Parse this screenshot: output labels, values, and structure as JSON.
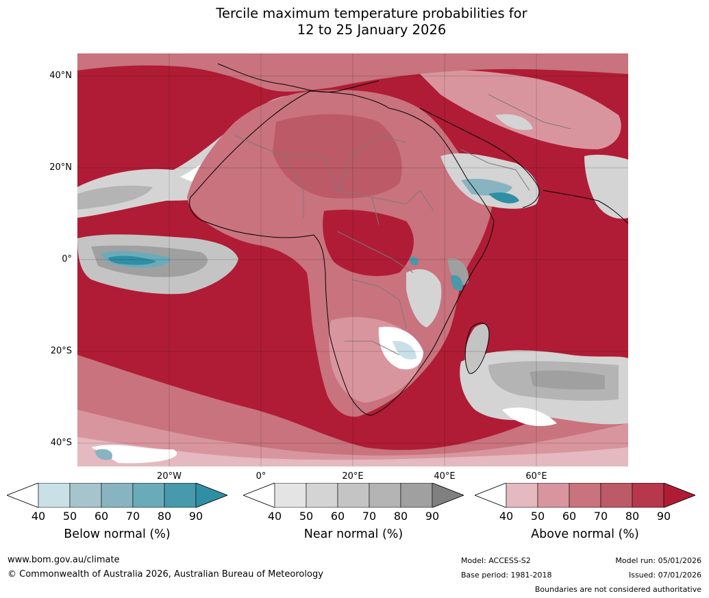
{
  "title": {
    "line1": "Tercile maximum temperature probabilities for",
    "line2": "12 to 25 January 2026"
  },
  "axes": {
    "latitude_labels": [
      "40°N",
      "20°N",
      "0°",
      "20°S",
      "40°S"
    ],
    "longitude_labels": [
      "20°W",
      "0°",
      "20°E",
      "40°E",
      "60°E"
    ]
  },
  "colorbars": [
    {
      "name": "below-normal",
      "title": "Below normal (%)",
      "ticks": [
        "40",
        "50",
        "60",
        "70",
        "80",
        "90"
      ],
      "colors": [
        "#ffffff",
        "#c9e0e7",
        "#a6c4cb",
        "#88b4c1",
        "#6aabb9",
        "#4899ab",
        "#2f8fa5"
      ]
    },
    {
      "name": "near-normal",
      "title": "Near normal (%)",
      "ticks": [
        "40",
        "50",
        "60",
        "70",
        "80",
        "90"
      ],
      "colors": [
        "#ffffff",
        "#e4e4e4",
        "#d4d4d4",
        "#c4c4c4",
        "#b4b4b4",
        "#a0a0a0",
        "#808080"
      ]
    },
    {
      "name": "above-normal",
      "title": "Above normal (%)",
      "ticks": [
        "40",
        "50",
        "60",
        "70",
        "80",
        "90"
      ],
      "colors": [
        "#ffffff",
        "#e4b9bf",
        "#d9959e",
        "#c8737d",
        "#bd5a67",
        "#b7374c",
        "#b01c35"
      ]
    }
  ],
  "footer": {
    "website": "www.bom.gov.au/climate",
    "copyright": "© Commonwealth of Australia 2026, Australian Bureau of Meteorology",
    "model": "Model: ACCESS-S2",
    "base_period": "Base period: 1981-2018",
    "model_run": "Model run: 05/01/2026",
    "issued": "Issued: 07/01/2026",
    "disclaimer": "Boundaries are not considered authoritative"
  }
}
